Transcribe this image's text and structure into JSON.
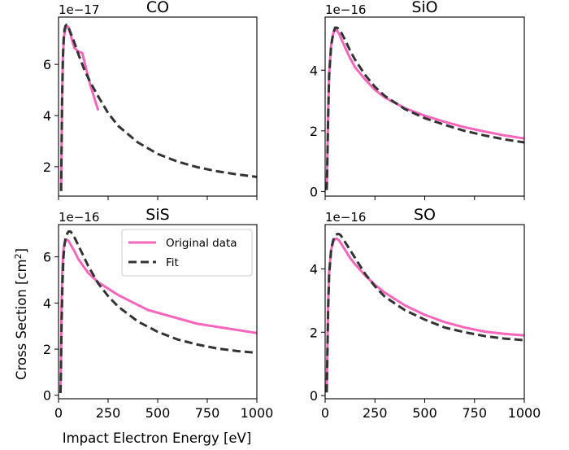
{
  "figure": {
    "xlabel": "Impact Electron Energy [eV]",
    "ylabel_main": "Cross Section [cm",
    "ylabel_sup": "2",
    "ylabel_end": "]"
  },
  "legend": {
    "original_label": "Original data",
    "fit_label": "Fit"
  },
  "colors": {
    "original": "#f766bb",
    "fit": "#333333"
  },
  "chart_data": [
    {
      "type": "line",
      "title": "CO",
      "offset_label": "1e−17",
      "xlim": [
        0,
        1000
      ],
      "ylim": [
        0.85,
        7.85
      ],
      "x_ticks": [
        0,
        250,
        500,
        750,
        1000
      ],
      "x_ticks_labeled": false,
      "y_ticks": [
        2,
        4,
        6
      ],
      "y_tick_labels": [
        "2",
        "4",
        "6"
      ],
      "series": [
        {
          "role": "original",
          "x": [
            13,
            15,
            18,
            22,
            28,
            35,
            42,
            50,
            60,
            70,
            80,
            100,
            120,
            140,
            160,
            180,
            200
          ],
          "y": [
            1.05,
            2.5,
            4.6,
            6.3,
            7.1,
            7.4,
            7.5,
            7.45,
            7.2,
            6.9,
            6.65,
            6.5,
            6.45,
            5.8,
            5.2,
            4.7,
            4.2
          ]
        },
        {
          "role": "fit",
          "x": [
            13,
            15,
            18,
            22,
            26,
            30,
            35,
            40,
            45,
            50,
            55,
            60,
            70,
            80,
            100,
            130,
            160,
            200,
            250,
            300,
            400,
            500,
            600,
            700,
            800,
            900,
            1000
          ],
          "y": [
            1.05,
            2.4,
            4.6,
            6.2,
            7.0,
            7.35,
            7.5,
            7.55,
            7.5,
            7.45,
            7.35,
            7.25,
            7.05,
            6.85,
            6.4,
            5.8,
            5.3,
            4.75,
            4.1,
            3.6,
            2.95,
            2.5,
            2.2,
            1.98,
            1.82,
            1.7,
            1.6
          ]
        }
      ]
    },
    {
      "type": "line",
      "title": "SiO",
      "offset_label": "1e−16",
      "xlim": [
        0,
        1000
      ],
      "ylim": [
        -0.15,
        5.75
      ],
      "x_ticks": [
        0,
        250,
        500,
        750,
        1000
      ],
      "x_ticks_labeled": false,
      "y_ticks": [
        0,
        2,
        4
      ],
      "y_tick_labels": [
        "0",
        "2",
        "4"
      ],
      "series": [
        {
          "role": "original",
          "x": [
            8,
            10,
            15,
            20,
            30,
            40,
            50,
            60,
            70,
            80,
            100,
            125,
            150,
            200,
            250,
            300,
            400,
            500,
            600,
            700,
            800,
            900,
            1000
          ],
          "y": [
            0.1,
            0.7,
            2.6,
            3.9,
            4.8,
            5.2,
            5.35,
            5.3,
            5.2,
            5.05,
            4.75,
            4.4,
            4.1,
            3.7,
            3.35,
            3.1,
            2.75,
            2.5,
            2.3,
            2.12,
            1.98,
            1.85,
            1.75
          ]
        },
        {
          "role": "fit",
          "x": [
            8,
            10,
            15,
            20,
            30,
            40,
            50,
            60,
            70,
            80,
            100,
            125,
            150,
            200,
            250,
            300,
            400,
            500,
            600,
            700,
            800,
            900,
            1000
          ],
          "y": [
            0.05,
            0.6,
            2.4,
            3.8,
            4.8,
            5.2,
            5.4,
            5.4,
            5.35,
            5.25,
            5.0,
            4.65,
            4.35,
            3.85,
            3.45,
            3.15,
            2.72,
            2.42,
            2.2,
            2.0,
            1.85,
            1.72,
            1.62
          ]
        }
      ]
    },
    {
      "type": "line",
      "title": "SiS",
      "offset_label": "1e−16",
      "xlim": [
        0,
        1000
      ],
      "ylim": [
        -0.15,
        7.4
      ],
      "x_ticks": [
        0,
        250,
        500,
        750,
        1000
      ],
      "x_tick_labels": [
        "0",
        "250",
        "500",
        "750",
        "1000"
      ],
      "y_ticks": [
        0,
        2,
        4,
        6
      ],
      "y_tick_labels": [
        "0",
        "2",
        "4",
        "6"
      ],
      "series": [
        {
          "role": "original",
          "x": [
            10,
            12,
            15,
            20,
            25,
            30,
            40,
            50,
            60,
            80,
            100,
            150,
            200,
            300,
            450,
            700,
            1000
          ],
          "y": [
            0.1,
            1.2,
            3.8,
            5.6,
            6.3,
            6.6,
            6.75,
            6.7,
            6.55,
            6.25,
            5.9,
            5.3,
            4.9,
            4.35,
            3.7,
            3.1,
            2.7
          ]
        },
        {
          "role": "fit",
          "x": [
            10,
            12,
            15,
            20,
            25,
            30,
            35,
            40,
            50,
            60,
            70,
            80,
            100,
            125,
            150,
            200,
            250,
            300,
            400,
            500,
            600,
            700,
            800,
            900,
            1000
          ],
          "y": [
            0.1,
            0.9,
            2.9,
            4.9,
            6.0,
            6.5,
            6.8,
            6.95,
            7.1,
            7.1,
            7.0,
            6.85,
            6.5,
            6.05,
            5.6,
            4.85,
            4.3,
            3.85,
            3.2,
            2.75,
            2.42,
            2.2,
            2.03,
            1.92,
            1.84
          ]
        }
      ]
    },
    {
      "type": "line",
      "title": "SO",
      "offset_label": "1e−16",
      "xlim": [
        0,
        1000
      ],
      "ylim": [
        -0.1,
        5.4
      ],
      "x_ticks": [
        0,
        250,
        500,
        750,
        1000
      ],
      "x_tick_labels": [
        "0",
        "250",
        "500",
        "750",
        "1000"
      ],
      "y_ticks": [
        0,
        2,
        4
      ],
      "y_tick_labels": [
        "0",
        "2",
        "4"
      ],
      "series": [
        {
          "role": "original",
          "x": [
            8,
            10,
            15,
            20,
            30,
            40,
            50,
            60,
            70,
            80,
            100,
            125,
            150,
            200,
            250,
            300,
            400,
            500,
            600,
            700,
            800,
            900,
            1000
          ],
          "y": [
            0.2,
            1.0,
            2.9,
            3.9,
            4.6,
            4.85,
            4.95,
            4.95,
            4.9,
            4.8,
            4.6,
            4.35,
            4.15,
            3.8,
            3.5,
            3.25,
            2.85,
            2.55,
            2.32,
            2.15,
            2.02,
            1.95,
            1.9
          ]
        },
        {
          "role": "fit",
          "x": [
            8,
            10,
            15,
            20,
            30,
            40,
            50,
            60,
            70,
            80,
            90,
            100,
            125,
            150,
            200,
            250,
            300,
            400,
            500,
            600,
            700,
            800,
            900,
            1000
          ],
          "y": [
            0.1,
            0.8,
            2.7,
            3.8,
            4.6,
            4.9,
            5.05,
            5.1,
            5.1,
            5.05,
            4.95,
            4.85,
            4.6,
            4.35,
            3.85,
            3.45,
            3.12,
            2.7,
            2.4,
            2.15,
            2.0,
            1.88,
            1.8,
            1.75
          ]
        }
      ]
    }
  ]
}
